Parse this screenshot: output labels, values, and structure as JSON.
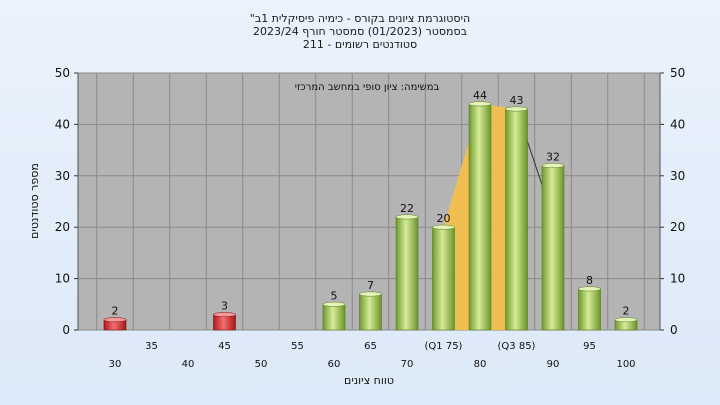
{
  "titles": {
    "line1": "\"היסטוגרמת ציונים בקורס - כימיה פיסיקלית 1ב",
    "line2": "בסמסטר (01/2023) סמסטר חורף 2023/24",
    "line3": "211 - סטודנטים רשומים"
  },
  "chart_data": {
    "type": "bar",
    "annotation": "במשימה: ציון סופי במחשב המרכזי",
    "xlabel": "טווח ציונים",
    "ylabel": "מספר סטודנטים",
    "ylim": [
      0,
      50
    ],
    "yticks": [
      0,
      10,
      20,
      30,
      40,
      50
    ],
    "categories": [
      "30",
      "35",
      "40",
      "45",
      "50",
      "55",
      "60",
      "65",
      "70",
      "(Q1 75)",
      "80",
      "(Q3 85)",
      "90",
      "95",
      "100"
    ],
    "values": [
      2,
      0,
      0,
      3,
      0,
      0,
      5,
      7,
      22,
      20,
      44,
      43,
      32,
      8,
      2
    ],
    "highlight_color": "#d93030",
    "bar_color": "#8fbf45",
    "iqr_fill_color": "#f5c04a",
    "plot_bg": "#b4b4b4",
    "grid": true,
    "staggered_tick_labels": true
  }
}
